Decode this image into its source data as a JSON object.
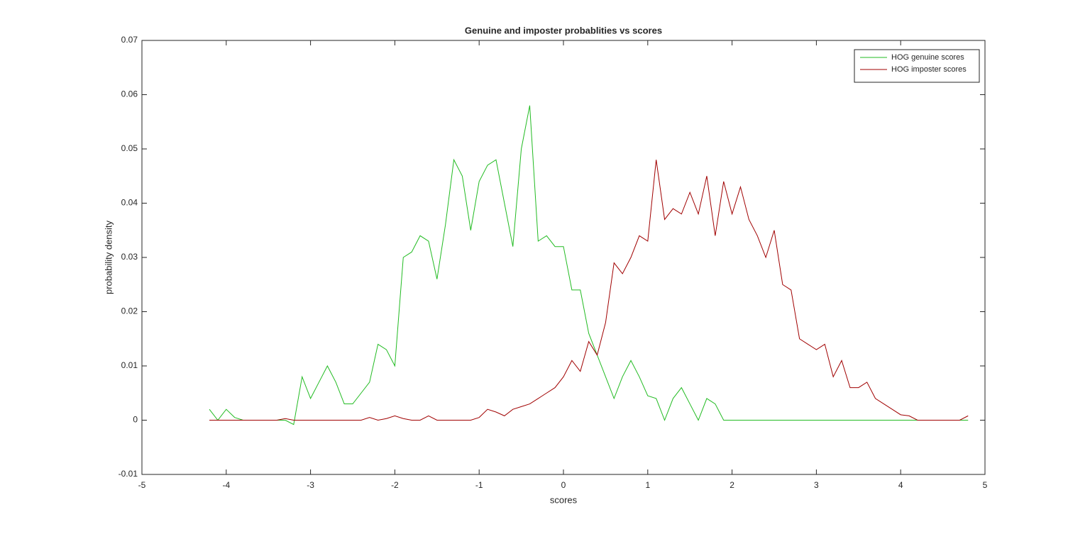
{
  "chart_data": {
    "type": "line",
    "title": "Genuine and imposter probablities vs scores",
    "xlabel": "scores",
    "ylabel": "probability density",
    "x": [
      -4.2,
      -4.1,
      -4.0,
      -3.9,
      -3.8,
      -3.7,
      -3.6,
      -3.5,
      -3.4,
      -3.3,
      -3.2,
      -3.1,
      -3.0,
      -2.9,
      -2.8,
      -2.7,
      -2.6,
      -2.5,
      -2.4,
      -2.3,
      -2.2,
      -2.1,
      -2.0,
      -1.9,
      -1.8,
      -1.7,
      -1.6,
      -1.5,
      -1.4,
      -1.3,
      -1.2,
      -1.1,
      -1.0,
      -0.9,
      -0.8,
      -0.7,
      -0.6,
      -0.5,
      -0.4,
      -0.3,
      -0.2,
      -0.1,
      0.0,
      0.1,
      0.2,
      0.3,
      0.4,
      0.5,
      0.6,
      0.7,
      0.8,
      0.9,
      1.0,
      1.1,
      1.2,
      1.3,
      1.4,
      1.5,
      1.6,
      1.7,
      1.8,
      1.9,
      2.0,
      2.1,
      2.2,
      2.3,
      2.4,
      2.5,
      2.6,
      2.7,
      2.8,
      2.9,
      3.0,
      3.1,
      3.2,
      3.3,
      3.4,
      3.5,
      3.6,
      3.7,
      3.8,
      3.9,
      4.0,
      4.1,
      4.2,
      4.3,
      4.4,
      4.5,
      4.6,
      4.7,
      4.8
    ],
    "series": [
      {
        "name": "HOG genuine scores",
        "color": "#22bb22",
        "values": [
          0.002,
          0.0,
          0.002,
          0.0005,
          0.0,
          0.0,
          0.0,
          0.0,
          0.0,
          0.0,
          -0.0008,
          0.008,
          0.004,
          0.007,
          0.01,
          0.007,
          0.003,
          0.003,
          0.005,
          0.007,
          0.014,
          0.013,
          0.01,
          0.03,
          0.031,
          0.034,
          0.033,
          0.026,
          0.036,
          0.048,
          0.045,
          0.035,
          0.044,
          0.047,
          0.048,
          0.04,
          0.032,
          0.05,
          0.058,
          0.033,
          0.034,
          0.032,
          0.032,
          0.024,
          0.024,
          0.016,
          0.012,
          0.008,
          0.004,
          0.008,
          0.011,
          0.008,
          0.0045,
          0.004,
          0.0,
          0.004,
          0.006,
          0.003,
          0.0,
          0.004,
          0.003,
          0.0,
          0.0,
          0.0,
          0.0,
          0.0,
          0.0,
          0.0,
          0.0,
          0.0,
          0.0,
          0.0,
          0.0,
          0.0,
          0.0,
          0.0,
          0.0,
          0.0,
          0.0,
          0.0,
          0.0,
          0.0,
          0.0,
          0.0,
          0.0,
          0.0,
          0.0,
          0.0,
          0.0,
          0.0,
          0.0
        ]
      },
      {
        "name": "HOG imposter scores",
        "color": "#a00000",
        "values": [
          0.0,
          0.0,
          0.0,
          0.0,
          0.0,
          0.0,
          0.0,
          0.0,
          0.0,
          0.0003,
          0.0,
          0.0,
          0.0,
          0.0,
          0.0,
          0.0,
          0.0,
          0.0,
          0.0,
          0.0005,
          0.0,
          0.0003,
          0.0008,
          0.0003,
          0.0,
          0.0,
          0.0008,
          0.0,
          0.0,
          0.0,
          0.0,
          0.0,
          0.0005,
          0.002,
          0.0015,
          0.0008,
          0.002,
          0.0025,
          0.003,
          0.004,
          0.005,
          0.006,
          0.008,
          0.011,
          0.009,
          0.0145,
          0.012,
          0.018,
          0.029,
          0.027,
          0.03,
          0.034,
          0.033,
          0.048,
          0.037,
          0.039,
          0.038,
          0.042,
          0.038,
          0.045,
          0.034,
          0.044,
          0.038,
          0.043,
          0.037,
          0.034,
          0.03,
          0.035,
          0.025,
          0.024,
          0.015,
          0.014,
          0.013,
          0.014,
          0.008,
          0.011,
          0.006,
          0.006,
          0.007,
          0.004,
          0.003,
          0.002,
          0.001,
          0.0008,
          0.0,
          0.0,
          0.0,
          0.0,
          0.0,
          0.0,
          0.0008
        ]
      }
    ],
    "xlim": [
      -5,
      5
    ],
    "xticks": [
      -5,
      -4,
      -3,
      -2,
      -1,
      0,
      1,
      2,
      3,
      4,
      5
    ],
    "ylim": [
      -0.01,
      0.07
    ],
    "yticks": [
      -0.01,
      0,
      0.01,
      0.02,
      0.03,
      0.04,
      0.05,
      0.06,
      0.07
    ],
    "legend": "northeast",
    "grid": false
  }
}
